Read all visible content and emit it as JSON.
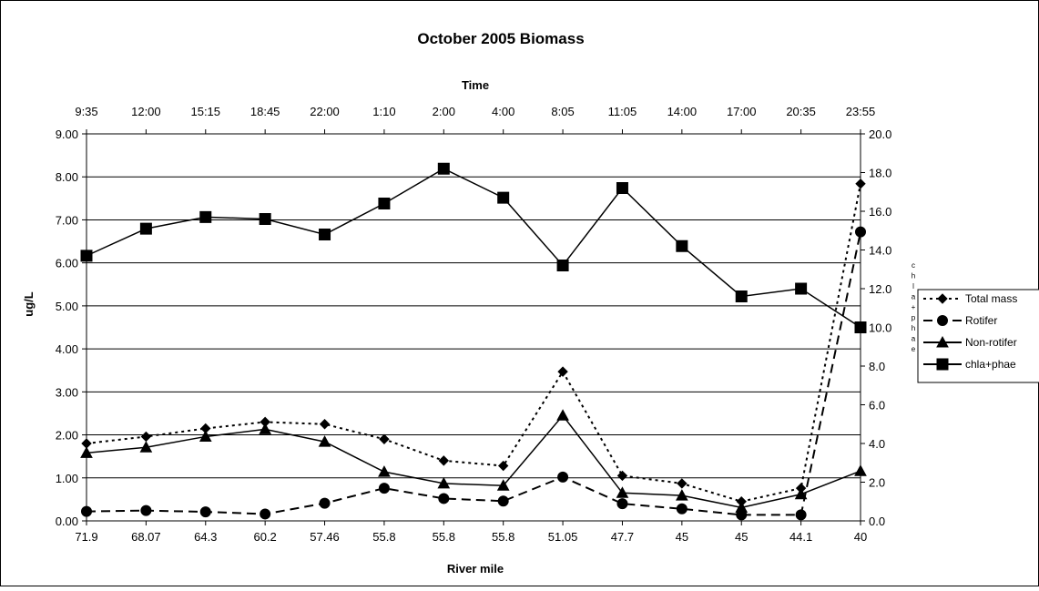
{
  "chart_data": {
    "type": "line",
    "title": "October 2005 Biomass",
    "xlabel": "River mile",
    "x2label": "Time",
    "ylabel": "ug/L",
    "y2label": "chla+phae",
    "categories": [
      "71.9",
      "68.07",
      "64.3",
      "60.2",
      "57.46",
      "55.8",
      "55.8",
      "55.8",
      "51.05",
      "47.7",
      "45",
      "45",
      "44.1",
      "40"
    ],
    "top_categories": [
      "9:35",
      "12:00",
      "15:15",
      "18:45",
      "22:00",
      "1:10",
      "2:00",
      "4:00",
      "8:05",
      "11:05",
      "14:00",
      "17:00",
      "20:35",
      "23:55"
    ],
    "ylim": [
      0,
      9
    ],
    "y_ticks": [
      "0.00",
      "1.00",
      "2.00",
      "3.00",
      "4.00",
      "5.00",
      "6.00",
      "7.00",
      "8.00",
      "9.00"
    ],
    "y2lim": [
      0,
      20
    ],
    "y2_ticks": [
      "0.0",
      "2.0",
      "4.0",
      "6.0",
      "8.0",
      "10.0",
      "12.0",
      "14.0",
      "16.0",
      "18.0",
      "20.0"
    ],
    "grid": true,
    "legend_position": "right",
    "series": [
      {
        "name": "Total mass",
        "axis": "left",
        "style": "dotted",
        "marker": "diamond",
        "color": "#000000",
        "values": [
          1.8,
          1.96,
          2.15,
          2.3,
          2.25,
          1.9,
          1.4,
          1.28,
          3.47,
          1.05,
          0.87,
          0.45,
          0.76,
          7.84
        ]
      },
      {
        "name": "Rotifer",
        "axis": "left",
        "style": "dashed",
        "marker": "circle",
        "color": "#000000",
        "values": [
          0.22,
          0.24,
          0.21,
          0.16,
          0.41,
          0.76,
          0.52,
          0.46,
          1.02,
          0.4,
          0.28,
          0.14,
          0.14,
          6.72
        ]
      },
      {
        "name": "Non-rotifer",
        "axis": "left",
        "style": "solid",
        "marker": "triangle",
        "color": "#000000",
        "values": [
          1.58,
          1.71,
          1.96,
          2.13,
          1.84,
          1.14,
          0.87,
          0.82,
          2.45,
          0.65,
          0.59,
          0.31,
          0.62,
          1.16
        ]
      },
      {
        "name": "chla+phae",
        "axis": "right",
        "style": "solid",
        "marker": "square",
        "color": "#000000",
        "values": [
          13.7,
          15.1,
          15.7,
          15.6,
          14.8,
          16.4,
          18.2,
          16.7,
          13.2,
          17.2,
          14.2,
          11.6,
          12.0,
          10.0
        ]
      }
    ]
  }
}
